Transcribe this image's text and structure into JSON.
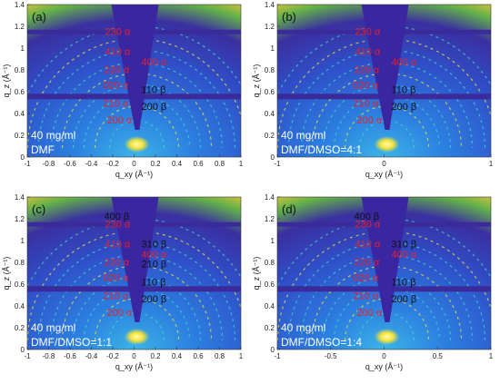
{
  "colors": {
    "background_dark": "#2a1a8c",
    "background_mid": "#2d6fd6",
    "ring_cyan": "#3fd9c8",
    "ring_yellow": "#f7e23a",
    "alpha_label": "#e8202a",
    "beta_label": "#111111",
    "white_label": "#ffffff"
  },
  "panels": [
    {
      "tag": "(a)",
      "conc": "40 mg/ml",
      "solvent": "DMF",
      "alpha_labels": [
        "230 α",
        "410 α",
        "220 α",
        "400 α",
        "020 α",
        "210 α",
        "200 α"
      ],
      "beta_labels": [
        "110 β",
        "200 β"
      ],
      "yaxis": {
        "label": "q_z (Å⁻¹)",
        "ticks": [
          "0",
          "0.2",
          "0.4",
          "0.6",
          "0.8",
          "1",
          "1.2",
          "1.4"
        ]
      },
      "xaxis": {
        "label": "q_xy (Å⁻¹)",
        "ticks": [
          "-1",
          "-0.8",
          "-0.6",
          "-0.4",
          "-0.2",
          "0",
          "0.2",
          "0.4",
          "0.6",
          "0.8",
          "1"
        ]
      }
    },
    {
      "tag": "(b)",
      "conc": "40 mg/ml",
      "solvent": "DMF/DMSO=4:1",
      "alpha_labels": [
        "230 α",
        "410 α",
        "220 α",
        "400 α",
        "020 α",
        "210 α",
        "200 α"
      ],
      "beta_labels": [
        "110 β",
        "200 β"
      ],
      "yaxis": {
        "label": "q_z (Å⁻¹)",
        "ticks": [
          "0",
          "0.2",
          "0.4",
          "0.6",
          "0.8",
          "1",
          "1.2",
          "1.4"
        ]
      },
      "xaxis": {
        "label": "q_xy (Å⁻¹)",
        "ticks": [
          "-1",
          "0",
          "1"
        ]
      }
    },
    {
      "tag": "(c)",
      "conc": "40 mg/ml",
      "solvent": "DMF/DMSO=1:1",
      "alpha_labels": [
        "230 α",
        "410 α",
        "220 α",
        "400 α",
        "020 α",
        "210 α",
        "200 α"
      ],
      "beta_labels": [
        "400 β",
        "310 β",
        "210 β",
        "110 β",
        "200 β"
      ],
      "yaxis": {
        "label": "q_z (Å⁻¹)",
        "ticks": [
          "0",
          "0.2",
          "0.4",
          "0.6",
          "0.8",
          "1",
          "1.2",
          "1.4"
        ]
      },
      "xaxis": {
        "label": "q_xy (Å⁻¹)",
        "ticks": [
          "-1",
          "-0.8",
          "-0.6",
          "-0.4",
          "-0.2",
          "0",
          "0.2",
          "0.4",
          "0.6",
          "0.8",
          "1"
        ]
      }
    },
    {
      "tag": "(d)",
      "conc": "40 mg/ml",
      "solvent": "DMF/DMSO=1:4",
      "alpha_labels": [
        "230 α",
        "410 α",
        "220 α",
        "400 α",
        "020 α",
        "210 α",
        "200 α"
      ],
      "beta_labels": [
        "400 β",
        "310 β",
        "110 β",
        "200 β"
      ],
      "yaxis": {
        "label": "q_z (Å⁻¹)",
        "ticks": [
          "0",
          "0.2",
          "0.4",
          "0.6",
          "0.8",
          "1",
          "1.2",
          "1.4"
        ]
      },
      "xaxis": {
        "label": "q_xy (Å⁻¹)",
        "ticks": [
          "-1",
          "-0.5",
          "0",
          "0.5",
          "1"
        ]
      }
    }
  ]
}
